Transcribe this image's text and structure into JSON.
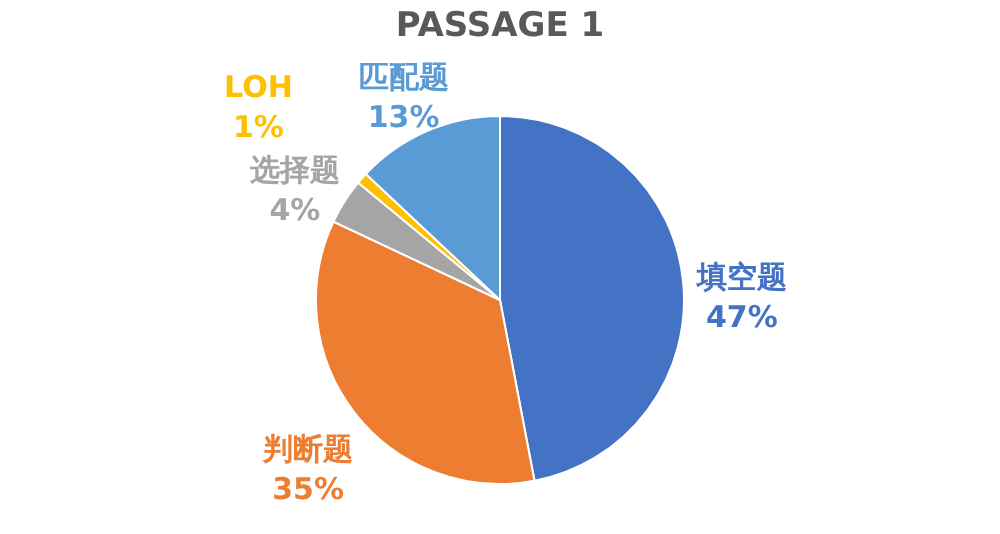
{
  "chart_data": {
    "type": "pie",
    "title": "PASSAGE 1",
    "categories": [
      "填空题",
      "判断题",
      "选择题",
      "LOH",
      "匹配题"
    ],
    "values": [
      47,
      35,
      4,
      1,
      13
    ],
    "colors": [
      "#4472c4",
      "#ed7d31",
      "#a5a5a5",
      "#ffc000",
      "#5b9bd5"
    ],
    "value_labels": [
      "47%",
      "35%",
      "4%",
      "1%",
      "13%"
    ],
    "legend": false
  }
}
